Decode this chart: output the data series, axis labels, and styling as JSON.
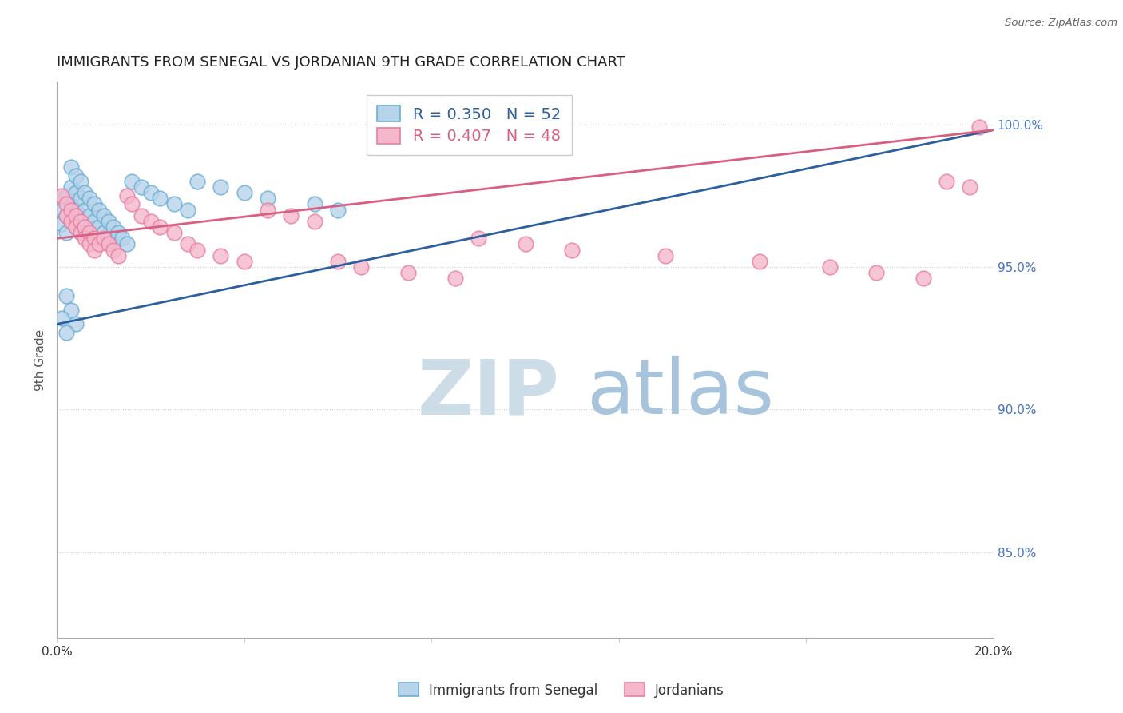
{
  "title": "IMMIGRANTS FROM SENEGAL VS JORDANIAN 9TH GRADE CORRELATION CHART",
  "source": "Source: ZipAtlas.com",
  "ylabel": "9th Grade",
  "r_blue": 0.35,
  "n_blue": 52,
  "r_pink": 0.407,
  "n_pink": 48,
  "xmin": 0.0,
  "xmax": 0.2,
  "ymin": 0.82,
  "ymax": 1.015,
  "yticks": [
    0.85,
    0.9,
    0.95,
    1.0
  ],
  "ytick_labels": [
    "85.0%",
    "90.0%",
    "95.0%",
    "100.0%"
  ],
  "xticks": [
    0.0,
    0.04,
    0.08,
    0.12,
    0.16,
    0.2
  ],
  "xtick_labels": [
    "0.0%",
    "",
    "",
    "",
    "",
    "20.0%"
  ],
  "blue_scatter_color_face": "#b8d4ea",
  "blue_scatter_color_edge": "#6aaed6",
  "pink_scatter_color_face": "#f5b8cb",
  "pink_scatter_color_edge": "#e87ca4",
  "blue_line_color": "#2c5f9e",
  "pink_line_color": "#d95f82",
  "legend_label_blue": "Immigrants from Senegal",
  "legend_label_pink": "Jordanians",
  "blue_x": [
    0.001,
    0.001,
    0.002,
    0.002,
    0.002,
    0.003,
    0.003,
    0.003,
    0.003,
    0.004,
    0.004,
    0.004,
    0.004,
    0.005,
    0.005,
    0.005,
    0.005,
    0.006,
    0.006,
    0.006,
    0.007,
    0.007,
    0.007,
    0.008,
    0.008,
    0.009,
    0.009,
    0.01,
    0.01,
    0.011,
    0.012,
    0.012,
    0.013,
    0.014,
    0.015,
    0.016,
    0.018,
    0.02,
    0.022,
    0.025,
    0.028,
    0.03,
    0.035,
    0.04,
    0.045,
    0.055,
    0.06,
    0.002,
    0.003,
    0.004,
    0.001,
    0.002
  ],
  "blue_y": [
    0.97,
    0.965,
    0.975,
    0.968,
    0.962,
    0.985,
    0.978,
    0.972,
    0.966,
    0.982,
    0.976,
    0.97,
    0.964,
    0.98,
    0.974,
    0.968,
    0.962,
    0.976,
    0.97,
    0.964,
    0.974,
    0.968,
    0.962,
    0.972,
    0.966,
    0.97,
    0.964,
    0.968,
    0.962,
    0.966,
    0.964,
    0.958,
    0.962,
    0.96,
    0.958,
    0.98,
    0.978,
    0.976,
    0.974,
    0.972,
    0.97,
    0.98,
    0.978,
    0.976,
    0.974,
    0.972,
    0.97,
    0.94,
    0.935,
    0.93,
    0.932,
    0.927
  ],
  "pink_x": [
    0.001,
    0.002,
    0.002,
    0.003,
    0.003,
    0.004,
    0.004,
    0.005,
    0.005,
    0.006,
    0.006,
    0.007,
    0.007,
    0.008,
    0.008,
    0.009,
    0.01,
    0.011,
    0.012,
    0.013,
    0.015,
    0.016,
    0.018,
    0.02,
    0.022,
    0.025,
    0.028,
    0.03,
    0.035,
    0.04,
    0.045,
    0.05,
    0.055,
    0.06,
    0.065,
    0.075,
    0.085,
    0.09,
    0.1,
    0.11,
    0.13,
    0.15,
    0.165,
    0.175,
    0.185,
    0.19,
    0.195,
    0.197
  ],
  "pink_y": [
    0.975,
    0.972,
    0.968,
    0.97,
    0.966,
    0.968,
    0.964,
    0.966,
    0.962,
    0.964,
    0.96,
    0.962,
    0.958,
    0.96,
    0.956,
    0.958,
    0.96,
    0.958,
    0.956,
    0.954,
    0.975,
    0.972,
    0.968,
    0.966,
    0.964,
    0.962,
    0.958,
    0.956,
    0.954,
    0.952,
    0.97,
    0.968,
    0.966,
    0.952,
    0.95,
    0.948,
    0.946,
    0.96,
    0.958,
    0.956,
    0.954,
    0.952,
    0.95,
    0.948,
    0.946,
    0.98,
    0.978,
    0.999
  ],
  "blue_line_x": [
    0.0,
    0.2
  ],
  "blue_line_y": [
    0.93,
    0.998
  ],
  "pink_line_x": [
    0.0,
    0.2
  ],
  "pink_line_y": [
    0.96,
    0.998
  ],
  "watermark_zip_color": "#ccdde8",
  "watermark_atlas_color": "#a8c4dc"
}
